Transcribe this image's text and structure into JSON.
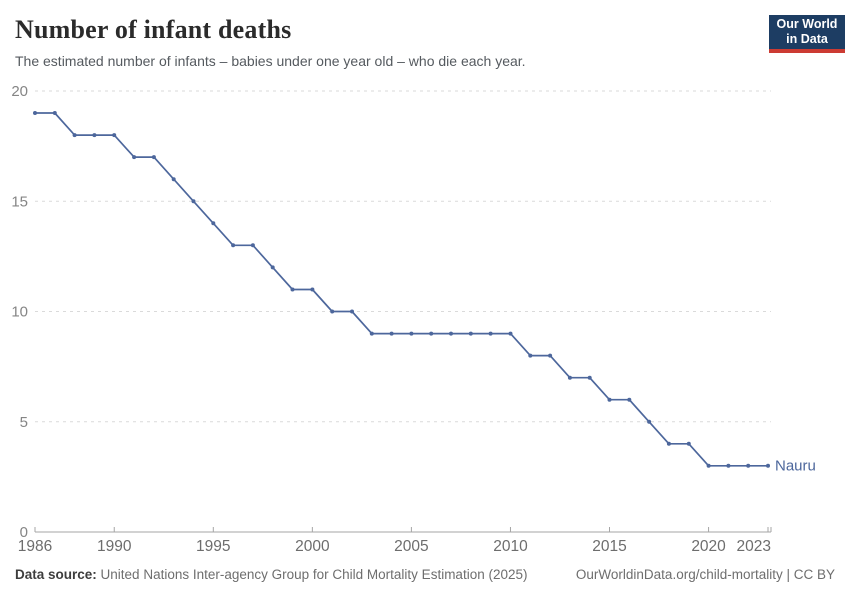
{
  "header": {
    "title": "Number of infant deaths",
    "subtitle": "The estimated number of infants – babies under one year old – who die each year.",
    "logo": {
      "line1": "Our World",
      "line2": "in Data",
      "bg_color": "#1d3d63",
      "accent_color": "#cc3b33"
    }
  },
  "chart_data": {
    "type": "line",
    "title": "Number of infant deaths",
    "xlabel": "",
    "ylabel": "",
    "xlim": [
      1986,
      2023
    ],
    "ylim": [
      0,
      20
    ],
    "grid": "horizontal-dashed",
    "legend_position": "end-of-line",
    "x_ticks": [
      1986,
      1990,
      1995,
      2000,
      2005,
      2010,
      2015,
      2020,
      2023
    ],
    "y_ticks": [
      0,
      5,
      10,
      15,
      20
    ],
    "series": [
      {
        "name": "Nauru",
        "color": "#4d679c",
        "x": [
          1986,
          1987,
          1988,
          1989,
          1990,
          1991,
          1992,
          1993,
          1994,
          1995,
          1996,
          1997,
          1998,
          1999,
          2000,
          2001,
          2002,
          2003,
          2004,
          2005,
          2006,
          2007,
          2008,
          2009,
          2010,
          2011,
          2012,
          2013,
          2014,
          2015,
          2016,
          2017,
          2018,
          2019,
          2020,
          2021,
          2022,
          2023
        ],
        "values": [
          19,
          19,
          18,
          18,
          18,
          17,
          17,
          16,
          15,
          14,
          13,
          13,
          12,
          11,
          11,
          10,
          10,
          9,
          9,
          9,
          9,
          9,
          9,
          9,
          9,
          8,
          8,
          7,
          7,
          6,
          6,
          5,
          4,
          4,
          3,
          3,
          3,
          3
        ]
      }
    ],
    "style": {
      "gridline_color": "#dadada",
      "axis_color": "#a5a5a5",
      "x_tick_label_color": "#6d6d6d",
      "y_tick_label_color": "#858585"
    }
  },
  "footer": {
    "datasource_label": "Data source:",
    "datasource_text": "United Nations Inter-agency Group for Child Mortality Estimation (2025)",
    "link_text": "OurWorldinData.org/child-mortality | CC BY"
  }
}
